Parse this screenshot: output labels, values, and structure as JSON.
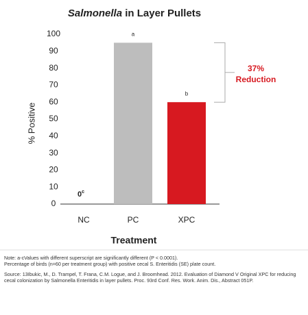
{
  "chart_data": {
    "type": "bar",
    "title": [
      "Salmonella",
      "in Layer Pullets"
    ],
    "ylabel": "% Positive",
    "xlabel": "Treatment",
    "categories": [
      "NC",
      "PC",
      "XPC"
    ],
    "values": [
      0,
      95,
      60
    ],
    "value_labels": [
      "0",
      null,
      null
    ],
    "letters": [
      "c",
      "a",
      "b"
    ],
    "colors": [
      "#bdbdbd",
      "#bdbdbd",
      "#d71920"
    ],
    "ylim": [
      0,
      100
    ],
    "yticks": [
      0,
      10,
      20,
      30,
      40,
      50,
      60,
      70,
      80,
      90,
      100
    ],
    "reduction_label": "37%",
    "reduction_text": "Reduction",
    "notes": [
      "Note: a-cValues with different superscript are significantly different (P < 0.0001).",
      "Percentage of birds (n=60 per treatment group) with positive cecal S. Enteritidis (SE) plate count.",
      "Source: 13Ibukic, M., D. Trampel, T. Frana, C.M. Logue, and J. Broomhead. 2012. Evaluation of Diamond V Original XPC for reducing cecal colonization by Salmonella Enteritidis in layer pullets. Proc. 93rd Conf. Res. Work. Anim. Dis., Abstract 051P."
    ]
  }
}
